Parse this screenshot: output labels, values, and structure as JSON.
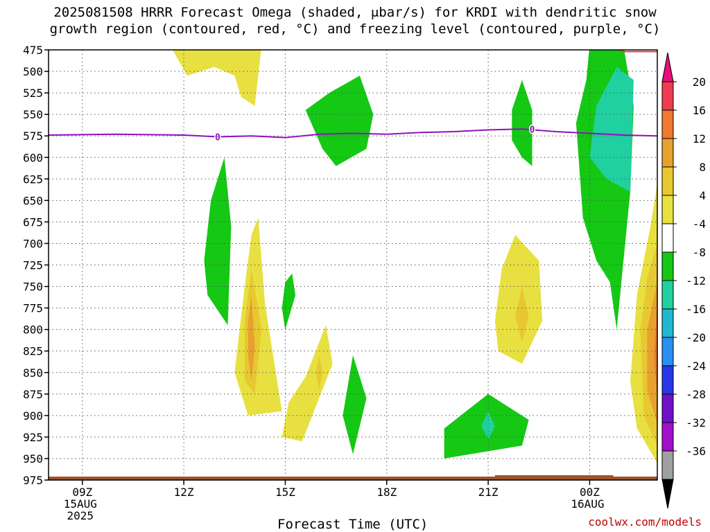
{
  "title_line1": "2025081508 HRRR Forecast Omega (shaded, μbar/s) for KRDI with dendritic snow",
  "title_line2": "growth region (contoured, red, °C) and freezing level (contoured, purple, °C)",
  "credit": "coolwx.com/models",
  "chart_data": {
    "type": "contour",
    "title": "2025081508 HRRR Forecast Omega (shaded, μbar/s) for KRDI with dendritic snow growth region (contoured, red, °C) and freezing level (contoured, purple, °C)",
    "xlabel": "Forecast Time (UTC)",
    "ylabel": "",
    "y_axis": {
      "reversed": true,
      "ylim": [
        475,
        975
      ],
      "ticks": [
        475,
        500,
        525,
        550,
        575,
        600,
        625,
        650,
        675,
        700,
        725,
        750,
        775,
        800,
        825,
        850,
        875,
        900,
        925,
        950,
        975
      ]
    },
    "x_axis": {
      "range_hours": [
        8,
        26
      ],
      "ticks": [
        {
          "hour": 9,
          "label": "09Z",
          "sub1": "15AUG",
          "sub2": "2025"
        },
        {
          "hour": 12,
          "label": "12Z",
          "sub1": "",
          "sub2": ""
        },
        {
          "hour": 15,
          "label": "15Z",
          "sub1": "",
          "sub2": ""
        },
        {
          "hour": 18,
          "label": "18Z",
          "sub1": "",
          "sub2": ""
        },
        {
          "hour": 21,
          "label": "21Z",
          "sub1": "",
          "sub2": ""
        },
        {
          "hour": 24,
          "label": "00Z",
          "sub1": "16AUG",
          "sub2": ""
        }
      ]
    },
    "grid": true,
    "colorbar": {
      "labels": [
        "20",
        "16",
        "12",
        "8",
        "4",
        "-4",
        "-8",
        "-12",
        "-16",
        "-20",
        "-24",
        "-28",
        "-32",
        "-36"
      ],
      "colors": [
        "#f03c50",
        "#f07830",
        "#e8a030",
        "#e8c830",
        "#e8e040",
        "#ffffff",
        "#14c814",
        "#20d0a0",
        "#20b8d0",
        "#2890f0",
        "#2838e8",
        "#7010c8",
        "#a010c8",
        "#a0a0a0"
      ],
      "top_arrow": "#e8107a",
      "bottom_arrow": "#000000"
    },
    "freezing_level": {
      "color": "#9010c0",
      "label": "0",
      "points": [
        [
          8,
          574
        ],
        [
          10,
          573
        ],
        [
          12,
          574
        ],
        [
          13,
          576
        ],
        [
          14,
          575
        ],
        [
          15,
          577
        ],
        [
          16,
          573
        ],
        [
          17,
          572
        ],
        [
          18,
          573
        ],
        [
          19,
          571
        ],
        [
          20,
          570
        ],
        [
          21,
          568
        ],
        [
          22,
          567
        ],
        [
          23,
          570
        ],
        [
          24,
          572
        ],
        [
          25,
          574
        ],
        [
          26,
          575
        ]
      ]
    },
    "dgz_contour": {
      "color": "#e04040",
      "points": [
        [
          24.5,
          470
        ],
        [
          25,
          477
        ],
        [
          26,
          477
        ]
      ]
    },
    "terrain": {
      "color": "#a0522d",
      "pressure": 975
    },
    "omega_regions": [
      {
        "level": 4,
        "color": "#e8e040",
        "points": [
          [
            11.6,
            470
          ],
          [
            14.3,
            470
          ],
          [
            14.1,
            540
          ],
          [
            13.7,
            530
          ],
          [
            13.5,
            505
          ],
          [
            12.9,
            495
          ],
          [
            12.1,
            505
          ]
        ]
      },
      {
        "level": -4,
        "color": "#14c814",
        "points": [
          [
            16.5,
            610
          ],
          [
            16.1,
            590
          ],
          [
            15.6,
            545
          ],
          [
            16.3,
            525
          ],
          [
            17.2,
            505
          ],
          [
            17.6,
            550
          ],
          [
            17.4,
            590
          ]
        ]
      },
      {
        "level": -4,
        "color": "#14c814",
        "points": [
          [
            13.2,
            600
          ],
          [
            13.4,
            680
          ],
          [
            13.3,
            795
          ],
          [
            12.7,
            760
          ],
          [
            12.6,
            720
          ],
          [
            12.8,
            650
          ]
        ]
      },
      {
        "level": 4,
        "color": "#e8e040",
        "points": [
          [
            14.2,
            670
          ],
          [
            14.4,
            770
          ],
          [
            14.9,
            895
          ],
          [
            13.9,
            900
          ],
          [
            13.5,
            850
          ],
          [
            13.8,
            750
          ],
          [
            14.0,
            690
          ]
        ]
      },
      {
        "level": 8,
        "color": "#e8c830",
        "points": [
          [
            14.0,
            730
          ],
          [
            14.3,
            800
          ],
          [
            14.1,
            875
          ],
          [
            13.8,
            860
          ],
          [
            13.8,
            790
          ]
        ]
      },
      {
        "level": 12,
        "color": "#e8a030",
        "points": [
          [
            14.0,
            760
          ],
          [
            14.1,
            820
          ],
          [
            14.0,
            860
          ],
          [
            13.9,
            830
          ],
          [
            13.9,
            790
          ]
        ]
      },
      {
        "level": -4,
        "color": "#14c814",
        "points": [
          [
            15.2,
            735
          ],
          [
            15.3,
            760
          ],
          [
            15.0,
            800
          ],
          [
            14.9,
            775
          ],
          [
            15.0,
            745
          ]
        ]
      },
      {
        "level": 4,
        "color": "#e8e040",
        "points": [
          [
            16.2,
            795
          ],
          [
            16.4,
            840
          ],
          [
            15.5,
            930
          ],
          [
            14.9,
            925
          ],
          [
            15.1,
            885
          ],
          [
            15.6,
            855
          ]
        ]
      },
      {
        "level": 8,
        "color": "#e8c830",
        "points": [
          [
            16.0,
            830
          ],
          [
            16.1,
            850
          ],
          [
            16.0,
            870
          ],
          [
            15.9,
            850
          ]
        ]
      },
      {
        "level": -4,
        "color": "#14c814",
        "points": [
          [
            17.0,
            830
          ],
          [
            17.4,
            880
          ],
          [
            17.0,
            945
          ],
          [
            16.7,
            900
          ]
        ]
      },
      {
        "level": -4,
        "color": "#14c814",
        "points": [
          [
            21.0,
            875
          ],
          [
            22.2,
            905
          ],
          [
            22.0,
            935
          ],
          [
            19.7,
            950
          ],
          [
            19.7,
            915
          ]
        ]
      },
      {
        "level": -8,
        "color": "#20d0a0",
        "points": [
          [
            21.0,
            895
          ],
          [
            21.2,
            912
          ],
          [
            21.0,
            928
          ],
          [
            20.8,
            912
          ]
        ]
      },
      {
        "level": -4,
        "color": "#14c814",
        "points": [
          [
            22.0,
            510
          ],
          [
            22.3,
            545
          ],
          [
            22.3,
            610
          ],
          [
            22.0,
            600
          ],
          [
            21.7,
            580
          ],
          [
            21.7,
            545
          ]
        ]
      },
      {
        "level": 4,
        "color": "#e8e040",
        "points": [
          [
            21.8,
            690
          ],
          [
            22.5,
            720
          ],
          [
            22.6,
            790
          ],
          [
            22.0,
            840
          ],
          [
            21.3,
            825
          ],
          [
            21.2,
            790
          ],
          [
            21.4,
            730
          ]
        ]
      },
      {
        "level": 8,
        "color": "#e8c830",
        "points": [
          [
            22.0,
            750
          ],
          [
            22.2,
            785
          ],
          [
            22.0,
            815
          ],
          [
            21.8,
            785
          ]
        ]
      },
      {
        "level": -4,
        "color": "#14c814",
        "points": [
          [
            24.0,
            470
          ],
          [
            25.0,
            470
          ],
          [
            25.3,
            540
          ],
          [
            25.2,
            640
          ],
          [
            25.0,
            720
          ],
          [
            24.8,
            800
          ],
          [
            24.6,
            745
          ],
          [
            24.2,
            720
          ],
          [
            23.8,
            670
          ],
          [
            23.6,
            560
          ],
          [
            23.9,
            510
          ]
        ]
      },
      {
        "level": -8,
        "color": "#20d0a0",
        "points": [
          [
            24.8,
            495
          ],
          [
            25.3,
            510
          ],
          [
            25.2,
            640
          ],
          [
            24.5,
            625
          ],
          [
            24.0,
            600
          ],
          [
            24.2,
            540
          ]
        ]
      },
      {
        "level": 4,
        "color": "#e8e040",
        "points": [
          [
            26.0,
            630
          ],
          [
            26.0,
            955
          ],
          [
            25.4,
            915
          ],
          [
            25.2,
            860
          ],
          [
            25.4,
            760
          ],
          [
            25.8,
            680
          ]
        ]
      },
      {
        "level": 8,
        "color": "#e8c830",
        "points": [
          [
            26.0,
            700
          ],
          [
            26.0,
            935
          ],
          [
            25.6,
            900
          ],
          [
            25.5,
            800
          ],
          [
            25.7,
            740
          ]
        ]
      },
      {
        "level": 12,
        "color": "#e8a030",
        "points": [
          [
            26.0,
            745
          ],
          [
            26.0,
            910
          ],
          [
            25.7,
            870
          ],
          [
            25.7,
            800
          ]
        ]
      },
      {
        "level": 16,
        "color": "#f07830",
        "points": [
          [
            26.0,
            770
          ],
          [
            26.0,
            880
          ],
          [
            25.9,
            830
          ]
        ]
      }
    ]
  }
}
